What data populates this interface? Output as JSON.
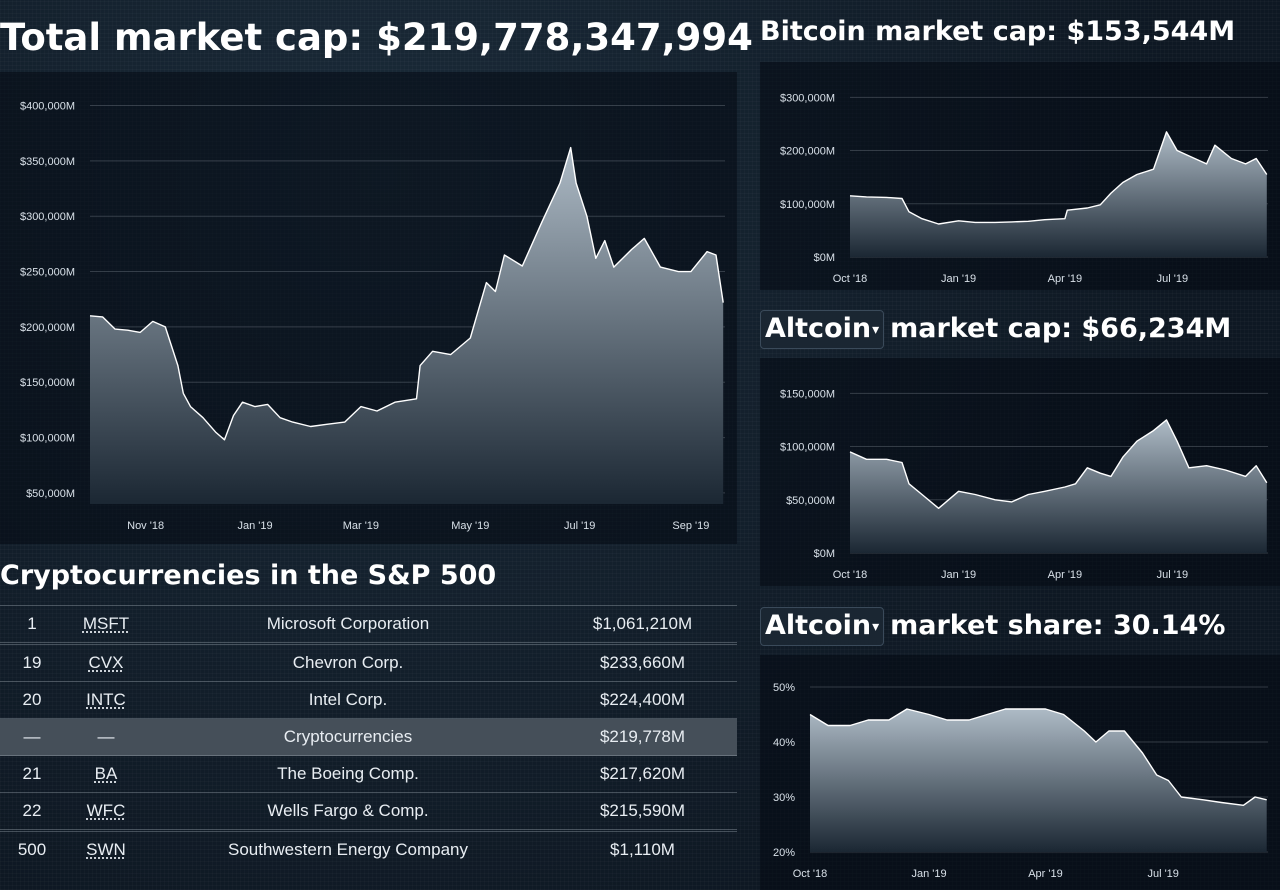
{
  "titles": {
    "total": "Total market cap: $219,778,347,994",
    "bitcoin": "Bitcoin market cap: $153,544M",
    "altcoin_cap_select": "Altcoin",
    "altcoin_cap_rest": "market cap: $66,234M",
    "altcoin_share_select": "Altcoin",
    "altcoin_share_rest": "market share: 30.14%",
    "sp500": "Cryptocurrencies in the S&P 500"
  },
  "sp500_table": {
    "rows": [
      {
        "rank": "1",
        "symbol": "MSFT",
        "name": "Microsoft Corporation",
        "cap": "$1,061,210M",
        "gap_before": false,
        "highlight": false
      },
      {
        "rank": "19",
        "symbol": "CVX",
        "name": "Chevron Corp.",
        "cap": "$233,660M",
        "gap_before": true,
        "highlight": false
      },
      {
        "rank": "20",
        "symbol": "INTC",
        "name": "Intel Corp.",
        "cap": "$224,400M",
        "gap_before": false,
        "highlight": false
      },
      {
        "rank": "—",
        "symbol": "—",
        "name": "Cryptocurrencies",
        "cap": "$219,778M",
        "gap_before": false,
        "highlight": true
      },
      {
        "rank": "21",
        "symbol": "BA",
        "name": "The Boeing Comp.",
        "cap": "$217,620M",
        "gap_before": false,
        "highlight": false
      },
      {
        "rank": "22",
        "symbol": "WFC",
        "name": "Wells Fargo & Comp.",
        "cap": "$215,590M",
        "gap_before": false,
        "highlight": false
      },
      {
        "rank": "500",
        "symbol": "SWN",
        "name": "Southwestern Energy Company",
        "cap": "$1,110M",
        "gap_before": true,
        "highlight": false
      }
    ]
  },
  "colors": {
    "line": "#ffffff",
    "area_top": "#aebbc6",
    "area_bottom": "#1b2733",
    "highlight_row": "#454f59"
  },
  "chart_data": [
    {
      "id": "total",
      "type": "area",
      "title": "",
      "ylim": [
        40000,
        405000
      ],
      "yticks": [
        50000,
        100000,
        150000,
        200000,
        250000,
        300000,
        350000,
        400000
      ],
      "ytick_labels": [
        "$50,000M",
        "$100,000M",
        "$150,000M",
        "$200,000M",
        "$250,000M",
        "$300,000M",
        "$350,000M",
        "$400,000M"
      ],
      "xlim": [
        "2018-10-01",
        "2019-09-20"
      ],
      "xticks": [
        "2018-11-01",
        "2019-01-01",
        "2019-03-01",
        "2019-05-01",
        "2019-07-01",
        "2019-09-01"
      ],
      "xtick_labels": [
        "Nov '18",
        "Jan '19",
        "Mar '19",
        "May '19",
        "Jul '19",
        "Sep '19"
      ],
      "x": [
        "2018-10-01",
        "2018-10-08",
        "2018-10-15",
        "2018-10-22",
        "2018-10-29",
        "2018-11-05",
        "2018-11-12",
        "2018-11-15",
        "2018-11-19",
        "2018-11-22",
        "2018-11-26",
        "2018-12-03",
        "2018-12-10",
        "2018-12-15",
        "2018-12-20",
        "2018-12-25",
        "2019-01-01",
        "2019-01-08",
        "2019-01-15",
        "2019-01-22",
        "2019-02-01",
        "2019-02-10",
        "2019-02-20",
        "2019-03-01",
        "2019-03-10",
        "2019-03-20",
        "2019-04-01",
        "2019-04-03",
        "2019-04-10",
        "2019-04-20",
        "2019-05-01",
        "2019-05-10",
        "2019-05-15",
        "2019-05-20",
        "2019-05-30",
        "2019-06-10",
        "2019-06-20",
        "2019-06-26",
        "2019-06-29",
        "2019-07-05",
        "2019-07-10",
        "2019-07-15",
        "2019-07-20",
        "2019-07-30",
        "2019-08-06",
        "2019-08-15",
        "2019-08-25",
        "2019-09-01",
        "2019-09-10",
        "2019-09-15",
        "2019-09-19"
      ],
      "y": [
        210000,
        209000,
        198000,
        197000,
        195000,
        205000,
        200000,
        185000,
        165000,
        140000,
        128000,
        118000,
        105000,
        98000,
        120000,
        132000,
        128000,
        130000,
        118000,
        114000,
        110000,
        112000,
        114000,
        128000,
        124000,
        132000,
        135000,
        165000,
        178000,
        175000,
        190000,
        240000,
        232000,
        265000,
        255000,
        295000,
        330000,
        362000,
        330000,
        300000,
        262000,
        278000,
        254000,
        270000,
        280000,
        254000,
        250000,
        250000,
        268000,
        265000,
        222000
      ]
    },
    {
      "id": "bitcoin",
      "type": "area",
      "title": "",
      "ylim": [
        0,
        310000
      ],
      "yticks": [
        0,
        100000,
        200000,
        300000
      ],
      "ytick_labels": [
        "$0M",
        "$100,000M",
        "$200,000M",
        "$300,000M"
      ],
      "xlim": [
        "2018-10-01",
        "2019-09-20"
      ],
      "xticks": [
        "2018-10-01",
        "2019-01-01",
        "2019-04-01",
        "2019-07-01"
      ],
      "xtick_labels": [
        "Oct '18",
        "Jan '19",
        "Apr '19",
        "Jul '19"
      ],
      "x": [
        "2018-10-01",
        "2018-10-15",
        "2018-11-01",
        "2018-11-14",
        "2018-11-20",
        "2018-12-01",
        "2018-12-15",
        "2019-01-01",
        "2019-01-15",
        "2019-02-01",
        "2019-02-15",
        "2019-03-01",
        "2019-03-15",
        "2019-04-01",
        "2019-04-03",
        "2019-04-20",
        "2019-05-01",
        "2019-05-10",
        "2019-05-20",
        "2019-06-01",
        "2019-06-15",
        "2019-06-26",
        "2019-07-05",
        "2019-07-15",
        "2019-07-30",
        "2019-08-06",
        "2019-08-20",
        "2019-09-01",
        "2019-09-10",
        "2019-09-19"
      ],
      "y": [
        115000,
        113000,
        112000,
        110000,
        85000,
        72000,
        62000,
        68000,
        65000,
        65000,
        66000,
        67000,
        70000,
        72000,
        88000,
        92000,
        98000,
        120000,
        140000,
        155000,
        165000,
        235000,
        200000,
        190000,
        175000,
        210000,
        185000,
        175000,
        185000,
        155000
      ]
    },
    {
      "id": "altcoin_cap",
      "type": "area",
      "title": "",
      "ylim": [
        0,
        155000
      ],
      "yticks": [
        0,
        50000,
        100000,
        150000
      ],
      "ytick_labels": [
        "$0M",
        "$50,000M",
        "$100,000M",
        "$150,000M"
      ],
      "xlim": [
        "2018-10-01",
        "2019-09-20"
      ],
      "xticks": [
        "2018-10-01",
        "2019-01-01",
        "2019-04-01",
        "2019-07-01"
      ],
      "xtick_labels": [
        "Oct '18",
        "Jan '19",
        "Apr '19",
        "Jul '19"
      ],
      "x": [
        "2018-10-01",
        "2018-10-15",
        "2018-11-01",
        "2018-11-14",
        "2018-11-20",
        "2018-12-01",
        "2018-12-15",
        "2019-01-01",
        "2019-01-15",
        "2019-02-01",
        "2019-02-15",
        "2019-03-01",
        "2019-03-15",
        "2019-04-01",
        "2019-04-10",
        "2019-04-20",
        "2019-05-01",
        "2019-05-10",
        "2019-05-20",
        "2019-06-01",
        "2019-06-15",
        "2019-06-26",
        "2019-07-05",
        "2019-07-15",
        "2019-07-30",
        "2019-08-15",
        "2019-09-01",
        "2019-09-10",
        "2019-09-19"
      ],
      "y": [
        95000,
        88000,
        88000,
        85000,
        65000,
        55000,
        42000,
        58000,
        55000,
        50000,
        48000,
        55000,
        58000,
        62000,
        65000,
        80000,
        75000,
        72000,
        90000,
        105000,
        115000,
        125000,
        105000,
        80000,
        82000,
        78000,
        72000,
        82000,
        66000
      ]
    },
    {
      "id": "altcoin_share",
      "type": "area",
      "title": "",
      "ylim": [
        20,
        50
      ],
      "yticks": [
        20,
        30,
        40,
        50
      ],
      "ytick_labels": [
        "20%",
        "30%",
        "40%",
        "50%"
      ],
      "xlim": [
        "2018-10-01",
        "2019-09-20"
      ],
      "xticks": [
        "2018-10-01",
        "2019-01-01",
        "2019-04-01",
        "2019-07-01"
      ],
      "xtick_labels": [
        "Oct '18",
        "Jan '19",
        "Apr '19",
        "Jul '19"
      ],
      "x": [
        "2018-10-01",
        "2018-10-15",
        "2018-11-01",
        "2018-11-15",
        "2018-12-01",
        "2018-12-15",
        "2019-01-01",
        "2019-01-15",
        "2019-02-01",
        "2019-02-15",
        "2019-03-01",
        "2019-03-15",
        "2019-04-01",
        "2019-04-15",
        "2019-05-01",
        "2019-05-10",
        "2019-05-20",
        "2019-06-01",
        "2019-06-15",
        "2019-06-26",
        "2019-07-05",
        "2019-07-15",
        "2019-08-01",
        "2019-08-15",
        "2019-09-01",
        "2019-09-10",
        "2019-09-19"
      ],
      "y": [
        45,
        43,
        43,
        44,
        44,
        46,
        45,
        44,
        44,
        45,
        46,
        46,
        46,
        45,
        42,
        40,
        42,
        42,
        38,
        34,
        33,
        30,
        29.5,
        29,
        28.5,
        30,
        29.5
      ]
    }
  ]
}
